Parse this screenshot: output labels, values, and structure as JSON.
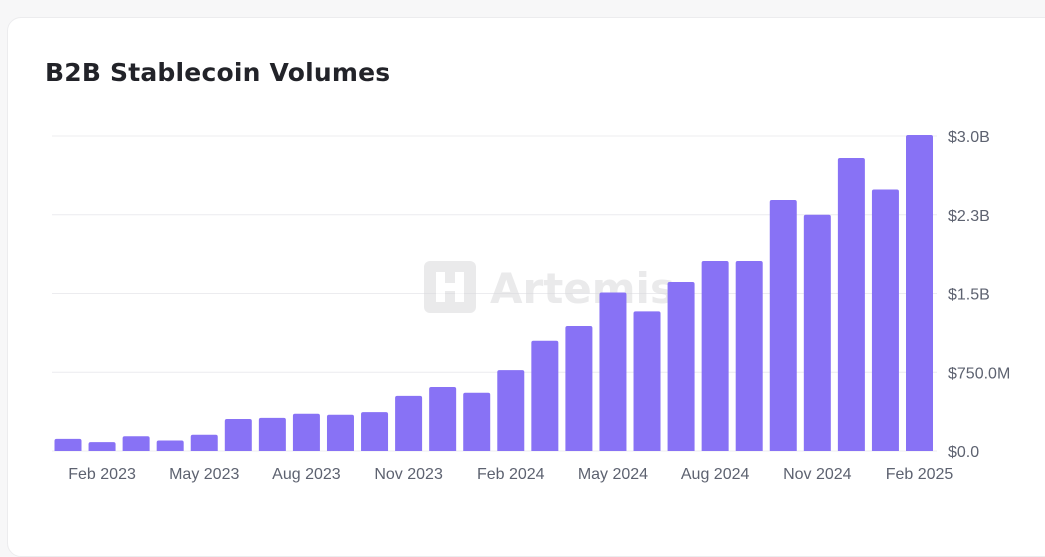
{
  "chart_data": {
    "type": "bar",
    "title": "B2B Stablecoin Volumes",
    "watermark": "Artemis",
    "bar_color": "#8872f5",
    "categories": [
      "Jan 2023",
      "Feb 2023",
      "Mar 2023",
      "Apr 2023",
      "May 2023",
      "Jun 2023",
      "Jul 2023",
      "Aug 2023",
      "Sep 2023",
      "Oct 2023",
      "Nov 2023",
      "Dec 2023",
      "Jan 2024",
      "Feb 2024",
      "Mar 2024",
      "Apr 2024",
      "May 2024",
      "Jun 2024",
      "Jul 2024",
      "Aug 2024",
      "Sep 2024",
      "Oct 2024",
      "Nov 2024",
      "Dec 2024",
      "Jan 2025",
      "Feb 2025"
    ],
    "values": [
      115000000,
      85000000,
      140000000,
      100000000,
      155000000,
      305000000,
      315000000,
      355000000,
      345000000,
      370000000,
      525000000,
      610000000,
      555000000,
      770000000,
      1050000000,
      1190000000,
      1510000000,
      1330000000,
      1610000000,
      1810000000,
      1810000000,
      2390000000,
      2250000000,
      2790000000,
      2490000000,
      3010000000
    ],
    "ylim": [
      0,
      3000000000
    ],
    "y_ticks": [
      {
        "value": 0,
        "label": "$0.0"
      },
      {
        "value": 750000000,
        "label": "$750.0M"
      },
      {
        "value": 1500000000,
        "label": "$1.5B"
      },
      {
        "value": 2250000000,
        "label": "$2.3B"
      },
      {
        "value": 3000000000,
        "label": "$3.0B"
      }
    ],
    "x_tick_labels": [
      "Feb 2023",
      "May 2023",
      "Aug 2023",
      "Nov 2023",
      "Feb 2024",
      "May 2024",
      "Aug 2024",
      "Nov 2024",
      "Feb 2025"
    ],
    "xlabel": "",
    "ylabel": "",
    "y_axis_side": "right",
    "grid": true
  }
}
